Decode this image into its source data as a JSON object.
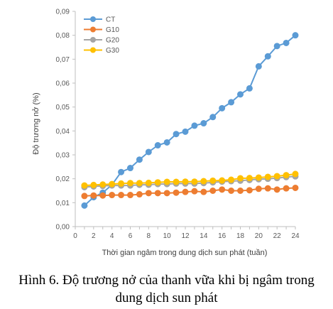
{
  "caption": {
    "line1": "Hình 6. Độ trương nở của thanh vữa khi bị ngâm trong",
    "line2": "dung dịch sun phát"
  },
  "chart_data": {
    "type": "line",
    "xlabel": "Thời gian ngâm trong dung dịch sun phát (tuần)",
    "ylabel": "Độ trương nở (%)",
    "xlim": [
      0,
      24
    ],
    "ylim": [
      0,
      0.09
    ],
    "x_ticks": [
      "0",
      "2",
      "4",
      "6",
      "8",
      "10",
      "12",
      "14",
      "16",
      "18",
      "20",
      "22",
      "24"
    ],
    "y_ticks": [
      "0,00",
      "0,01",
      "0,02",
      "0,03",
      "0,04",
      "0,05",
      "0,06",
      "0,07",
      "0,08",
      "0,09"
    ],
    "grid": false,
    "legend_position": "top-left",
    "x": [
      1,
      2,
      3,
      4,
      5,
      6,
      7,
      8,
      9,
      10,
      11,
      12,
      13,
      14,
      15,
      16,
      17,
      18,
      19,
      20,
      21,
      22,
      23,
      24
    ],
    "series": [
      {
        "name": "CT",
        "color": "#5b9bd5",
        "values": [
          0.0088,
          0.0123,
          0.0142,
          0.0175,
          0.0228,
          0.0245,
          0.028,
          0.0312,
          0.034,
          0.0352,
          0.0387,
          0.0397,
          0.0422,
          0.0432,
          0.0458,
          0.0495,
          0.052,
          0.0553,
          0.0578,
          0.067,
          0.0712,
          0.0755,
          0.0768,
          0.08
        ]
      },
      {
        "name": "G10",
        "color": "#ed7d31",
        "values": [
          0.0128,
          0.013,
          0.013,
          0.0132,
          0.0132,
          0.0132,
          0.0135,
          0.014,
          0.014,
          0.014,
          0.0142,
          0.0145,
          0.0148,
          0.0145,
          0.015,
          0.0155,
          0.015,
          0.015,
          0.0152,
          0.0158,
          0.016,
          0.0155,
          0.016,
          0.0162
        ]
      },
      {
        "name": "G20",
        "color": "#a5a5a5",
        "values": [
          0.0165,
          0.0168,
          0.017,
          0.0172,
          0.0172,
          0.0172,
          0.0175,
          0.0175,
          0.0178,
          0.0178,
          0.018,
          0.018,
          0.018,
          0.0182,
          0.0185,
          0.0188,
          0.019,
          0.0192,
          0.0195,
          0.0198,
          0.02,
          0.0203,
          0.0207,
          0.021
        ]
      },
      {
        "name": "G30",
        "color": "#ffc000",
        "values": [
          0.0172,
          0.0174,
          0.0176,
          0.0178,
          0.018,
          0.0182,
          0.0182,
          0.0183,
          0.0185,
          0.0187,
          0.0187,
          0.0188,
          0.0188,
          0.019,
          0.0192,
          0.0193,
          0.0196,
          0.0202,
          0.0203,
          0.0205,
          0.0208,
          0.0211,
          0.0215,
          0.022
        ]
      }
    ]
  }
}
